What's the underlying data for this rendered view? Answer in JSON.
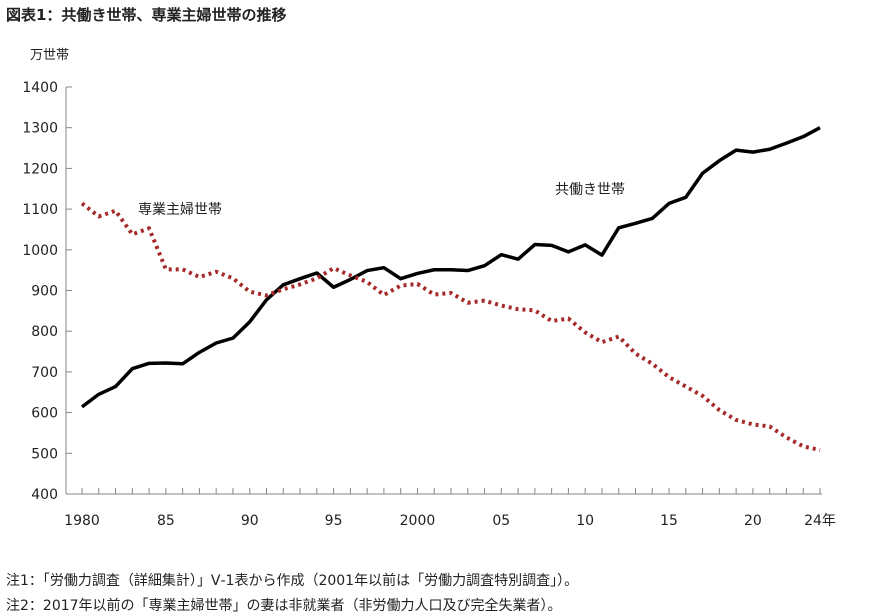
{
  "title": "図表1：共働き世帯、専業主婦世帯の推移",
  "notes": [
    "注1：「労働力調査（詳細集計）」Ⅴ-1表から作成（2001年以前は「労働力調査特別調査」）。",
    "注2：2017年以前の「専業主婦世帯」の妻は非就業者（非労働力人口及び完全失業者）。"
  ],
  "chart_data": {
    "type": "line",
    "ylabel": "万世帯",
    "ylim": [
      400,
      1400
    ],
    "yticks": [
      400,
      500,
      600,
      700,
      800,
      900,
      1000,
      1100,
      1200,
      1300,
      1400
    ],
    "xlim": [
      1980,
      2024
    ],
    "xtick_labels": [
      {
        "x": 1980,
        "label": "1980"
      },
      {
        "x": 1985,
        "label": "85"
      },
      {
        "x": 1990,
        "label": "90"
      },
      {
        "x": 1995,
        "label": "95"
      },
      {
        "x": 2000,
        "label": "2000"
      },
      {
        "x": 2005,
        "label": "05"
      },
      {
        "x": 2010,
        "label": "10"
      },
      {
        "x": 2015,
        "label": "15"
      },
      {
        "x": 2020,
        "label": "20"
      },
      {
        "x": 2024,
        "label": "24年"
      }
    ],
    "grid": false,
    "x": [
      1980,
      1981,
      1982,
      1983,
      1984,
      1985,
      1986,
      1987,
      1988,
      1989,
      1990,
      1991,
      1992,
      1993,
      1994,
      1995,
      1996,
      1997,
      1998,
      1999,
      2000,
      2001,
      2002,
      2003,
      2004,
      2005,
      2006,
      2007,
      2008,
      2009,
      2010,
      2011,
      2012,
      2013,
      2014,
      2015,
      2016,
      2017,
      2018,
      2019,
      2020,
      2021,
      2022,
      2023,
      2024
    ],
    "series": [
      {
        "name": "共働き世帯",
        "color": "#000000",
        "style": "solid",
        "values": [
          614,
          645,
          664,
          708,
          721,
          722,
          720,
          748,
          771,
          783,
          823,
          877,
          914,
          929,
          943,
          908,
          927,
          949,
          956,
          929,
          942,
          951,
          951,
          949,
          961,
          988,
          977,
          1013,
          1011,
          995,
          1012,
          987,
          1054,
          1065,
          1077,
          1114,
          1129,
          1188,
          1219,
          1245,
          1240,
          1247,
          1262,
          1278,
          1300
        ]
      },
      {
        "name": "専業主婦世帯",
        "color": "#a52a2a",
        "style": "dotted",
        "values": [
          1114,
          1082,
          1096,
          1038,
          1053,
          952,
          952,
          933,
          946,
          930,
          897,
          888,
          903,
          915,
          930,
          955,
          937,
          921,
          889,
          912,
          916,
          890,
          894,
          870,
          875,
          863,
          854,
          851,
          825,
          831,
          797,
          773,
          787,
          745,
          720,
          687,
          664,
          641,
          606,
          582,
          571,
          566,
          539,
          517,
          508
        ]
      }
    ]
  }
}
